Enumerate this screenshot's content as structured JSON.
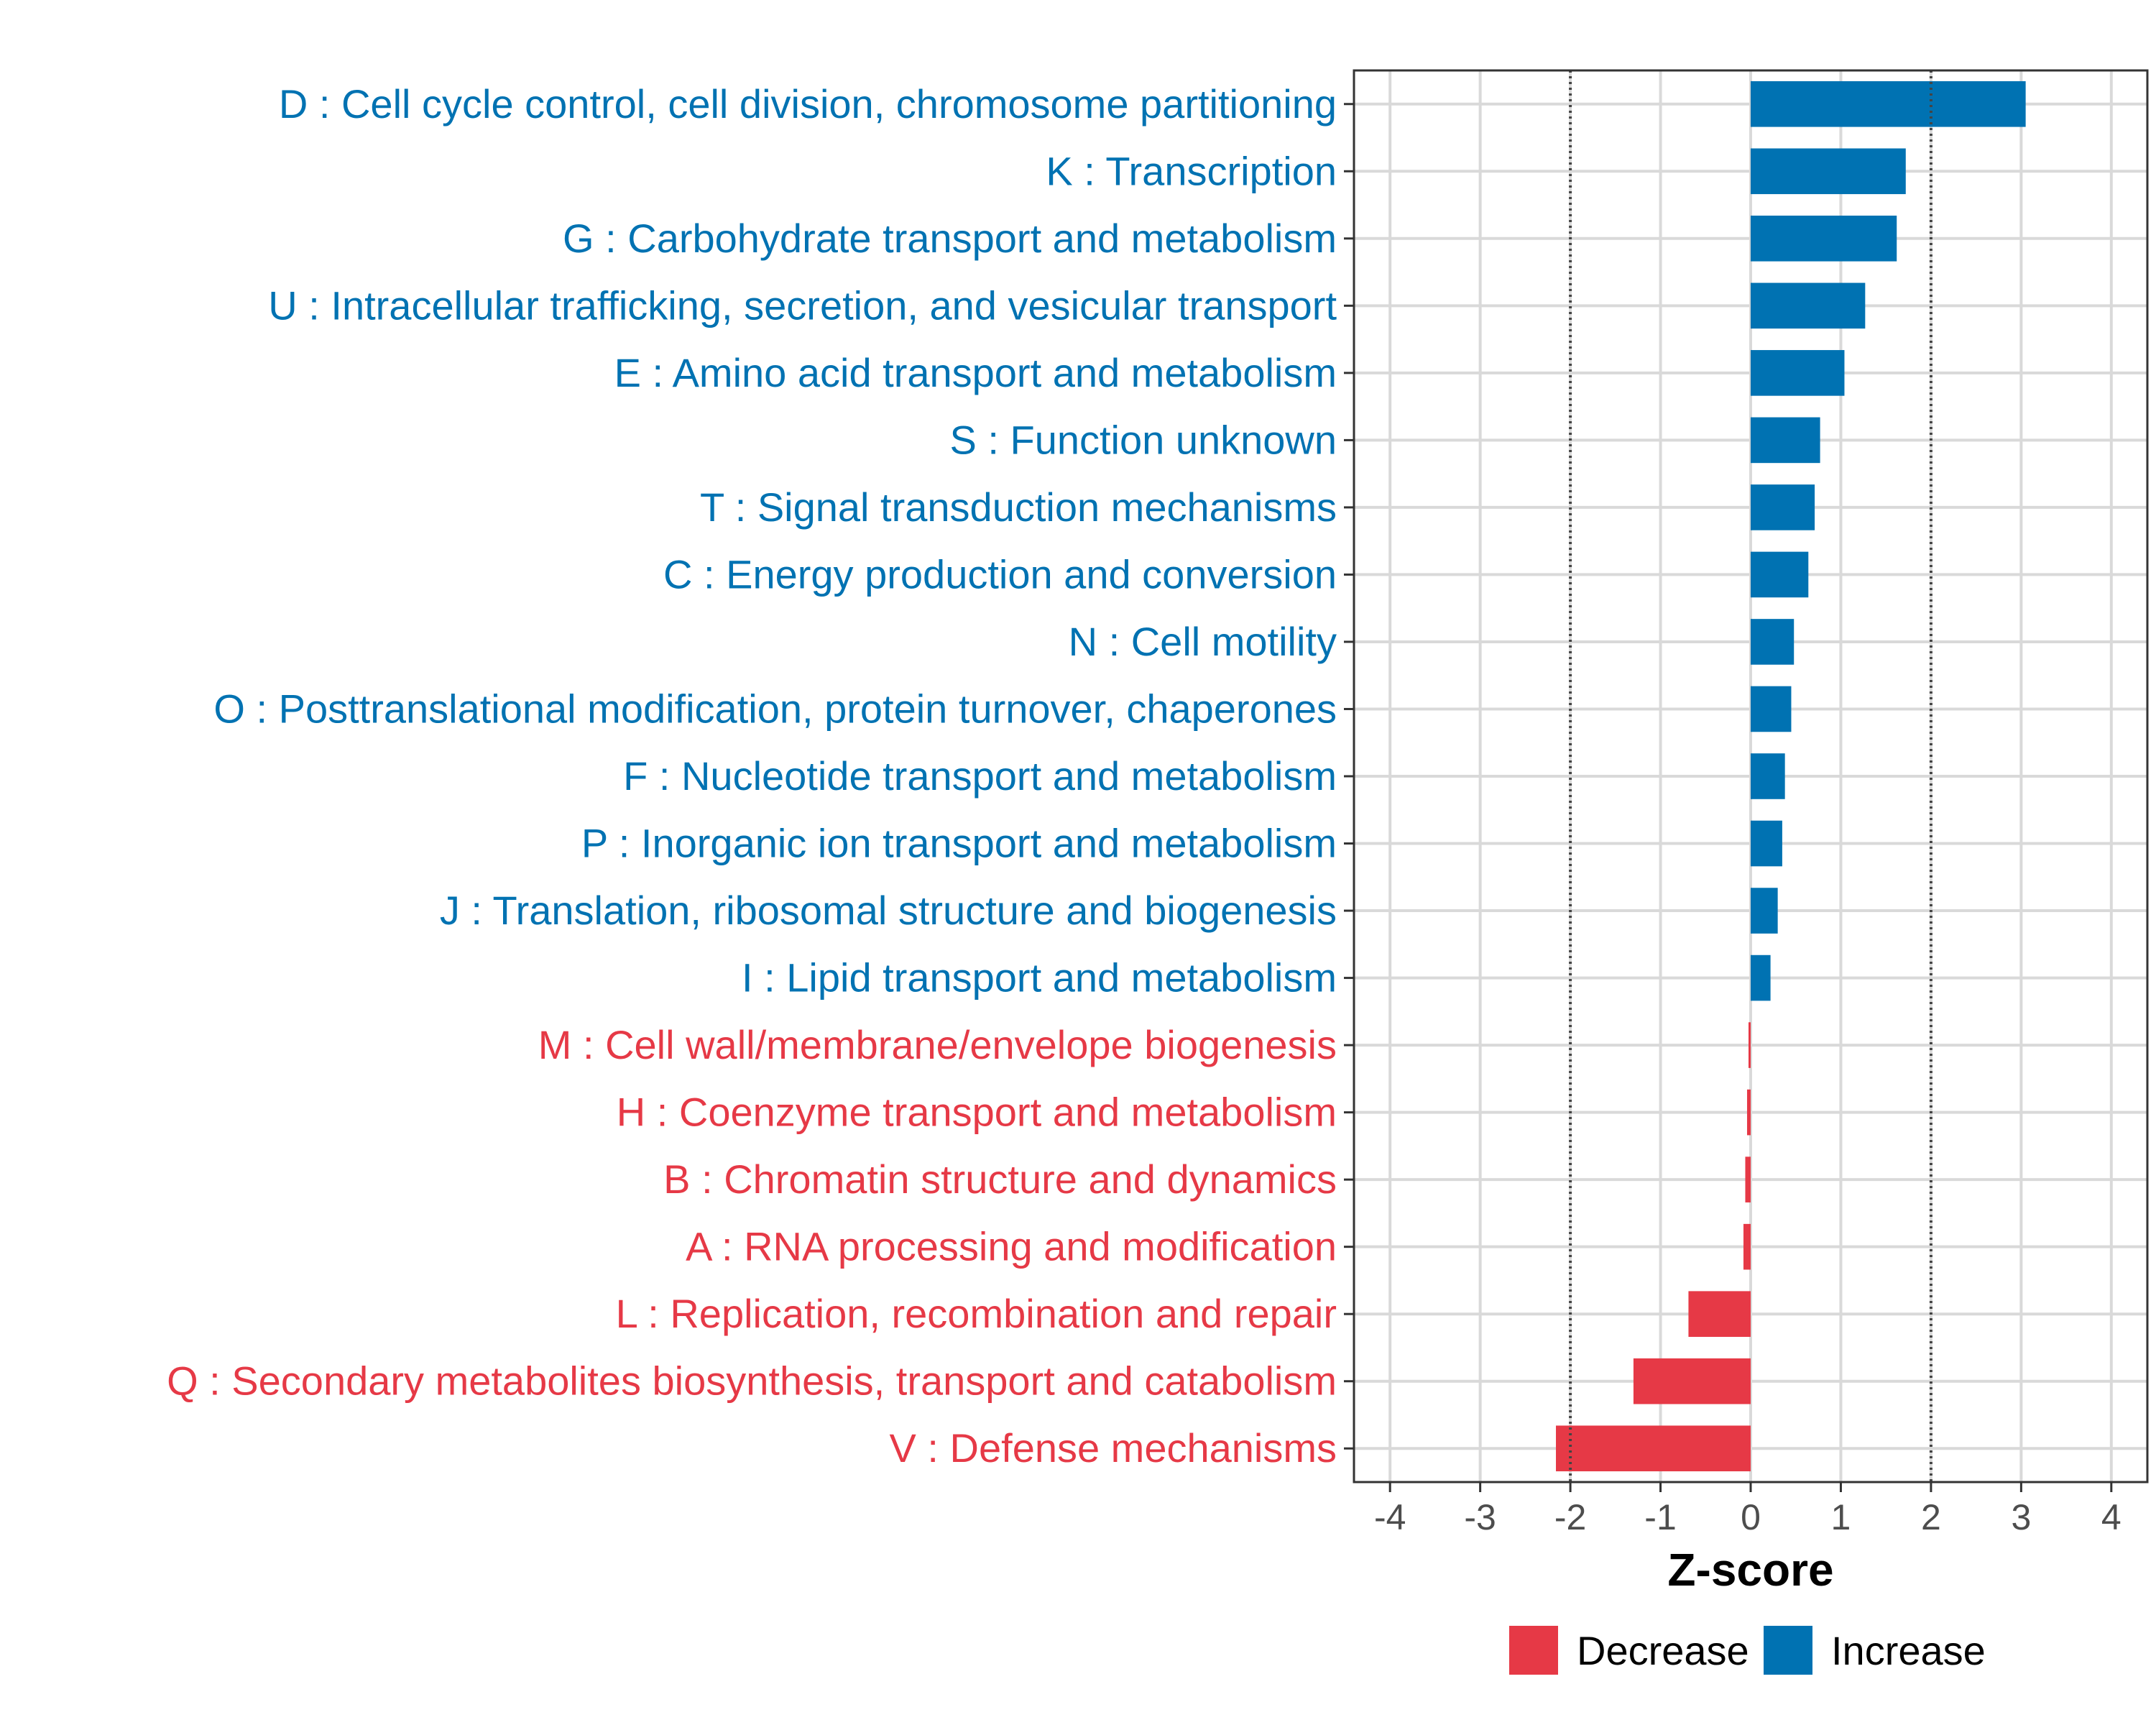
{
  "chart_data": {
    "type": "bar",
    "orientation": "horizontal",
    "xlabel": "Z-score",
    "xlim": [
      -4.4,
      4.4
    ],
    "xticks": [
      -4,
      -3,
      -2,
      -1,
      0,
      1,
      2,
      3,
      4
    ],
    "reference_lines": [
      -2,
      2
    ],
    "grid": true,
    "legend_position": "bottom",
    "colors": {
      "Increase": "#0072B2",
      "Decrease": "#E63946"
    },
    "legend": [
      {
        "name": "Decrease",
        "color": "#E63946"
      },
      {
        "name": "Increase",
        "color": "#0072B2"
      }
    ],
    "categories": [
      {
        "label": "D : Cell cycle control, cell division, chromosome partitioning",
        "value": 3.05,
        "direction": "Increase"
      },
      {
        "label": "K : Transcription",
        "value": 1.72,
        "direction": "Increase"
      },
      {
        "label": "G : Carbohydrate transport and metabolism",
        "value": 1.62,
        "direction": "Increase"
      },
      {
        "label": "U : Intracellular trafficking, secretion, and vesicular transport",
        "value": 1.27,
        "direction": "Increase"
      },
      {
        "label": "E : Amino acid transport and metabolism",
        "value": 1.04,
        "direction": "Increase"
      },
      {
        "label": "S : Function unknown",
        "value": 0.77,
        "direction": "Increase"
      },
      {
        "label": "T : Signal transduction mechanisms",
        "value": 0.71,
        "direction": "Increase"
      },
      {
        "label": "C : Energy production and conversion",
        "value": 0.64,
        "direction": "Increase"
      },
      {
        "label": "N : Cell motility",
        "value": 0.48,
        "direction": "Increase"
      },
      {
        "label": "O : Posttranslational modification, protein turnover, chaperones",
        "value": 0.45,
        "direction": "Increase"
      },
      {
        "label": "F : Nucleotide transport and metabolism",
        "value": 0.38,
        "direction": "Increase"
      },
      {
        "label": "P : Inorganic ion transport and metabolism",
        "value": 0.35,
        "direction": "Increase"
      },
      {
        "label": "J : Translation, ribosomal structure and biogenesis",
        "value": 0.3,
        "direction": "Increase"
      },
      {
        "label": "I : Lipid transport and metabolism",
        "value": 0.22,
        "direction": "Increase"
      },
      {
        "label": "M : Cell wall/membrane/envelope biogenesis",
        "value": -0.02,
        "direction": "Decrease"
      },
      {
        "label": "H : Coenzyme transport and metabolism",
        "value": -0.04,
        "direction": "Decrease"
      },
      {
        "label": "B : Chromatin structure and dynamics",
        "value": -0.06,
        "direction": "Decrease"
      },
      {
        "label": "A : RNA processing and modification",
        "value": -0.08,
        "direction": "Decrease"
      },
      {
        "label": "L : Replication, recombination and repair",
        "value": -0.69,
        "direction": "Decrease"
      },
      {
        "label": "Q : Secondary metabolites biosynthesis, transport and catabolism",
        "value": -1.3,
        "direction": "Decrease"
      },
      {
        "label": "V : Defense mechanisms",
        "value": -2.16,
        "direction": "Decrease"
      }
    ]
  }
}
